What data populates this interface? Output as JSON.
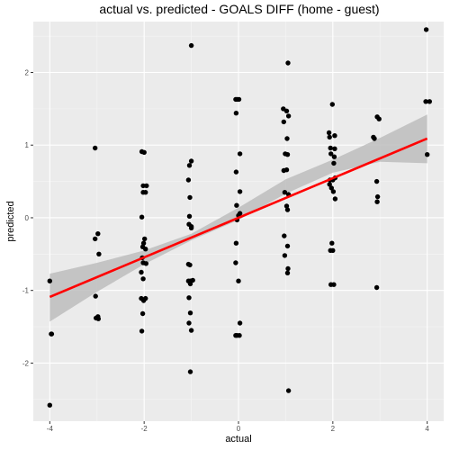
{
  "chart_data": {
    "type": "scatter",
    "title": "actual vs. predicted - GOALS DIFF (home - guest)",
    "xlabel": "actual",
    "ylabel": "predicted",
    "xlim": [
      -4.35,
      4.35
    ],
    "ylim": [
      -2.8,
      2.7
    ],
    "x_ticks": [
      -4,
      -2,
      0,
      2,
      4
    ],
    "y_ticks": [
      -2,
      -1,
      0,
      1,
      2
    ],
    "grid": true,
    "points": [
      [
        -4.0,
        -0.87
      ],
      [
        -3.97,
        -1.6
      ],
      [
        -3.96,
        -1.6
      ],
      [
        -4.0,
        -2.58
      ],
      [
        -3.04,
        0.96
      ],
      [
        -3.04,
        -0.29
      ],
      [
        -3.03,
        -1.08
      ],
      [
        -2.98,
        -0.22
      ],
      [
        -2.96,
        -0.5
      ],
      [
        -2.98,
        -1.36
      ],
      [
        -3.02,
        -1.38
      ],
      [
        -2.97,
        -1.39
      ],
      [
        -2.05,
        0.91
      ],
      [
        -2.0,
        0.9
      ],
      [
        -2.02,
        0.44
      ],
      [
        -1.95,
        0.44
      ],
      [
        -2.02,
        0.35
      ],
      [
        -1.97,
        0.35
      ],
      [
        -2.05,
        0.01
      ],
      [
        -1.99,
        -0.29
      ],
      [
        -2.01,
        -0.35
      ],
      [
        -2.03,
        -0.4
      ],
      [
        -1.97,
        -0.43
      ],
      [
        -2.04,
        -0.55
      ],
      [
        -2.02,
        -0.62
      ],
      [
        -1.96,
        -0.63
      ],
      [
        -2.06,
        -0.75
      ],
      [
        -2.02,
        -0.84
      ],
      [
        -2.06,
        -1.11
      ],
      [
        -2.01,
        -1.14
      ],
      [
        -1.97,
        -1.11
      ],
      [
        -2.03,
        -1.32
      ],
      [
        -2.05,
        -1.56
      ],
      [
        -1.0,
        2.37
      ],
      [
        -1.0,
        0.78
      ],
      [
        -1.04,
        0.72
      ],
      [
        -1.06,
        0.52
      ],
      [
        -1.03,
        0.28
      ],
      [
        -1.04,
        0.02
      ],
      [
        -1.05,
        -0.09
      ],
      [
        -1.0,
        -0.12
      ],
      [
        -1.0,
        -0.14
      ],
      [
        -1.06,
        -0.64
      ],
      [
        -1.03,
        -0.65
      ],
      [
        -1.06,
        -0.87
      ],
      [
        -1.02,
        -0.87
      ],
      [
        -1.02,
        -0.91
      ],
      [
        -0.97,
        -0.86
      ],
      [
        -1.05,
        -1.1
      ],
      [
        -1.02,
        -1.31
      ],
      [
        -1.05,
        -1.45
      ],
      [
        -1.0,
        -1.55
      ],
      [
        -1.02,
        -2.12
      ],
      [
        -0.06,
        1.63
      ],
      [
        -0.03,
        1.63
      ],
      [
        0.01,
        1.63
      ],
      [
        -0.05,
        1.44
      ],
      [
        0.03,
        0.88
      ],
      [
        -0.05,
        0.63
      ],
      [
        0.03,
        0.36
      ],
      [
        -0.04,
        0.17
      ],
      [
        0.03,
        0.06
      ],
      [
        0.0,
        0.03
      ],
      [
        -0.03,
        -0.03
      ],
      [
        -0.05,
        -0.35
      ],
      [
        -0.06,
        -0.62
      ],
      [
        0.0,
        -0.87
      ],
      [
        0.03,
        -1.45
      ],
      [
        -0.06,
        -1.62
      ],
      [
        -0.03,
        -1.62
      ],
      [
        0.02,
        -1.62
      ],
      [
        1.05,
        2.13
      ],
      [
        0.95,
        1.5
      ],
      [
        1.02,
        1.47
      ],
      [
        1.06,
        1.4
      ],
      [
        0.96,
        1.32
      ],
      [
        1.03,
        1.09
      ],
      [
        0.99,
        0.88
      ],
      [
        1.04,
        0.87
      ],
      [
        0.96,
        0.65
      ],
      [
        1.02,
        0.66
      ],
      [
        0.98,
        0.35
      ],
      [
        1.06,
        0.32
      ],
      [
        1.02,
        0.16
      ],
      [
        1.04,
        0.11
      ],
      [
        0.97,
        -0.25
      ],
      [
        1.04,
        -0.39
      ],
      [
        0.98,
        -0.52
      ],
      [
        1.05,
        -0.7
      ],
      [
        1.04,
        -0.76
      ],
      [
        1.06,
        -2.38
      ],
      [
        1.99,
        1.56
      ],
      [
        1.92,
        1.17
      ],
      [
        1.93,
        1.11
      ],
      [
        2.04,
        1.13
      ],
      [
        1.95,
        0.96
      ],
      [
        2.04,
        0.95
      ],
      [
        1.96,
        0.88
      ],
      [
        2.03,
        0.84
      ],
      [
        2.02,
        0.75
      ],
      [
        1.94,
        0.52
      ],
      [
        2.0,
        0.52
      ],
      [
        2.05,
        0.55
      ],
      [
        1.93,
        0.46
      ],
      [
        1.97,
        0.41
      ],
      [
        2.01,
        0.36
      ],
      [
        2.05,
        0.26
      ],
      [
        1.98,
        -0.35
      ],
      [
        1.95,
        -0.45
      ],
      [
        2.0,
        -0.45
      ],
      [
        1.96,
        -0.92
      ],
      [
        2.02,
        -0.92
      ],
      [
        2.94,
        1.39
      ],
      [
        2.98,
        1.36
      ],
      [
        2.86,
        1.11
      ],
      [
        2.88,
        1.09
      ],
      [
        2.93,
        0.5
      ],
      [
        2.95,
        0.29
      ],
      [
        2.94,
        0.22
      ],
      [
        2.93,
        -0.96
      ],
      [
        3.98,
        2.59
      ],
      [
        3.97,
        1.6
      ],
      [
        4.05,
        1.6
      ],
      [
        4.0,
        0.87
      ]
    ],
    "regression_line": {
      "x": [
        -4,
        4
      ],
      "y": [
        -1.09,
        1.09
      ]
    },
    "confidence_band": {
      "x": [
        -4,
        -3,
        -2,
        -1,
        0,
        1,
        2,
        3,
        4
      ],
      "upper": [
        -0.77,
        -0.62,
        -0.45,
        -0.22,
        0.14,
        0.53,
        0.8,
        1.1,
        1.42
      ],
      "lower": [
        -1.43,
        -1.02,
        -0.64,
        -0.31,
        -0.03,
        0.33,
        0.62,
        0.77,
        0.75
      ]
    },
    "colors": {
      "panel": "#ebebeb",
      "grid_major": "#ffffff",
      "points": "#000000",
      "line": "#ff0000",
      "band": "#bdbdbd"
    }
  }
}
